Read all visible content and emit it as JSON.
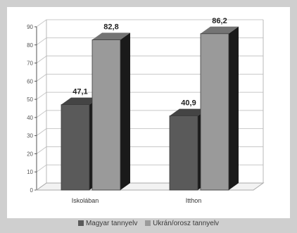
{
  "chart_data": {
    "type": "bar",
    "categories": [
      "Iskolában",
      "Itthon"
    ],
    "series": [
      {
        "name": "Magyar tannyelv",
        "values": [
          47.1,
          40.9
        ],
        "color": "#5a5a5a"
      },
      {
        "name": "Ukrán/orosz tannyelv",
        "values": [
          82.8,
          86.2
        ],
        "color": "#9a9a9a"
      }
    ],
    "value_labels": [
      [
        "47,1",
        "40,9"
      ],
      [
        "82,8",
        "86,2"
      ]
    ],
    "ylim": [
      0,
      90
    ],
    "yticks": [
      0,
      10,
      20,
      30,
      40,
      50,
      60,
      70,
      80,
      90
    ],
    "ytick_labels": [
      "0",
      "10",
      "20",
      "30",
      "40",
      "50",
      "60",
      "70",
      "80",
      "90"
    ],
    "title": "",
    "xlabel": "",
    "ylabel": "",
    "grid": true,
    "legend_position": "bottom",
    "style": "3d-bar"
  }
}
